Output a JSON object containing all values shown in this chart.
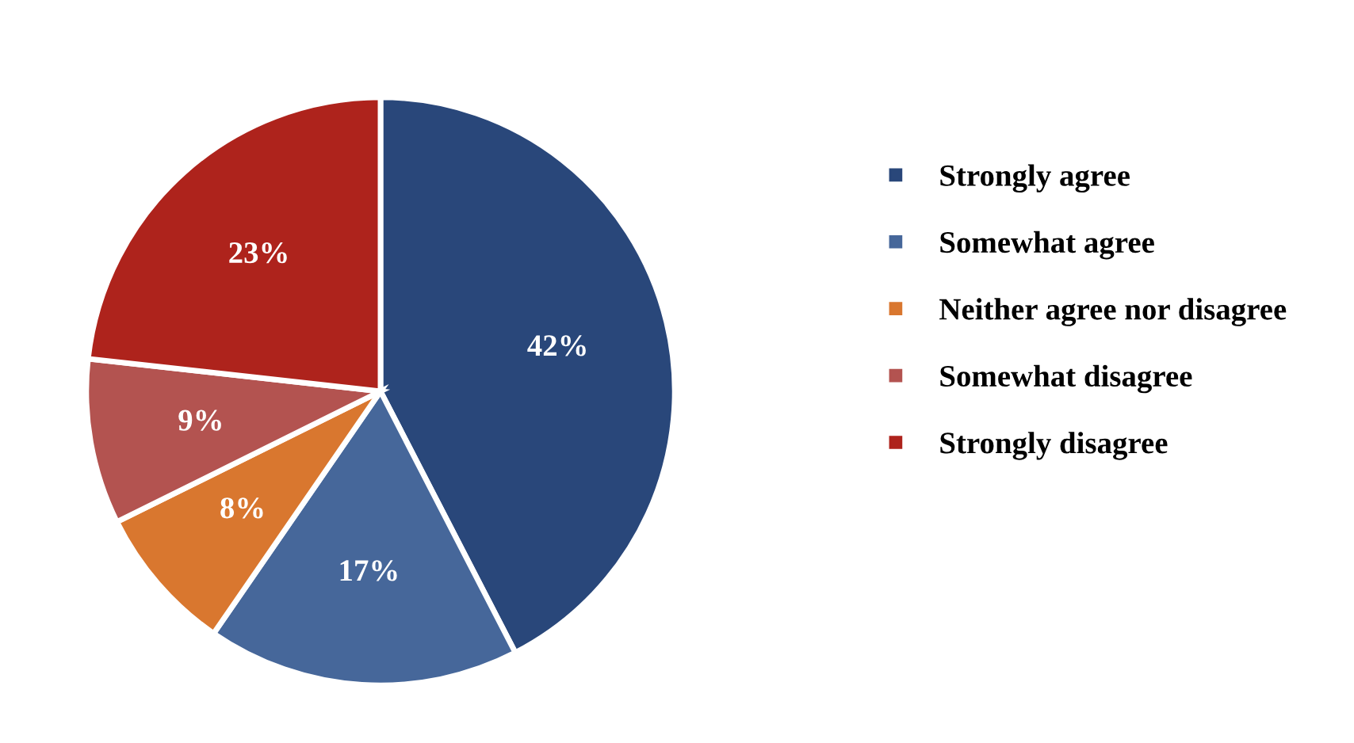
{
  "chart_data": {
    "type": "pie",
    "categories": [
      "Strongly agree",
      "Somewhat agree",
      "Neither agree nor disagree",
      "Somewhat disagree",
      "Strongly disagree"
    ],
    "values": [
      42,
      17,
      8,
      9,
      23
    ],
    "colors": [
      "#29477a",
      "#46679a",
      "#d9772f",
      "#b35350",
      "#ae231c"
    ],
    "value_labels": [
      "42%",
      "17%",
      "8%",
      "9%",
      "23%"
    ],
    "legend": "right"
  }
}
